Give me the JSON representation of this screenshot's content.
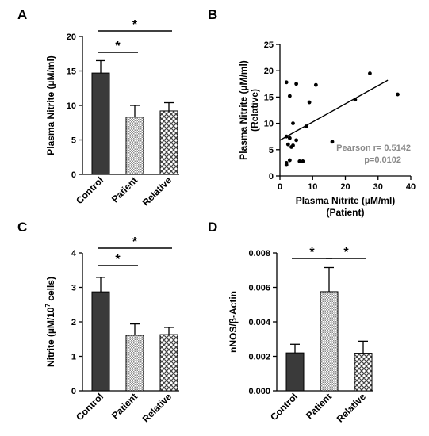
{
  "colors": {
    "control": "#3a3a3a",
    "patient_pattern": "#8c8c8c",
    "relative_pattern": "#444444",
    "stat_text": "#8a8a8a"
  },
  "chart_data": [
    {
      "panel": "A",
      "type": "bar",
      "ylabel": "Plasma Nitrite (µM/ml)",
      "categories": [
        "Control",
        "Patient",
        "Relative"
      ],
      "values": [
        14.7,
        8.3,
        9.2
      ],
      "errors": [
        1.8,
        1.7,
        1.2
      ],
      "ylim": [
        0,
        20
      ],
      "yticks": [
        "0",
        "5",
        "10",
        "15",
        "20"
      ],
      "significance": [
        {
          "from": 0,
          "to": 1,
          "label": "*"
        },
        {
          "from": 0,
          "to": 2,
          "label": "*"
        }
      ]
    },
    {
      "panel": "B",
      "type": "scatter",
      "xlabel": [
        "Plasma Nitrite (µM/ml)",
        "(Patient)"
      ],
      "ylabel": [
        "Plasma Nitrite (µM/ml)",
        "(Relative)"
      ],
      "xlim": [
        0,
        40
      ],
      "ylim": [
        0,
        25
      ],
      "xticks": [
        "0",
        "10",
        "20",
        "30",
        "40"
      ],
      "yticks": [
        "0",
        "5",
        "10",
        "15",
        "20",
        "25"
      ],
      "points": [
        [
          2,
          17.8
        ],
        [
          3,
          15.2
        ],
        [
          5,
          17.5
        ],
        [
          11,
          17.3
        ],
        [
          9,
          14
        ],
        [
          4,
          10
        ],
        [
          8,
          9.4
        ],
        [
          2,
          7.5
        ],
        [
          3,
          7.2
        ],
        [
          5,
          6.8
        ],
        [
          4,
          5.8
        ],
        [
          2.5,
          6
        ],
        [
          3.5,
          5.5
        ],
        [
          6,
          2.8
        ],
        [
          7,
          2.8
        ],
        [
          2,
          2.5
        ],
        [
          2,
          2.1
        ],
        [
          3,
          3
        ],
        [
          16,
          6.5
        ],
        [
          23,
          14.5
        ],
        [
          27.5,
          19.5
        ],
        [
          36,
          15.5
        ]
      ],
      "fit_line": {
        "x": [
          0,
          33
        ],
        "y": [
          6.8,
          18.2
        ]
      },
      "stats": [
        "Pearson r= 0.5142",
        "p=0.0102"
      ]
    },
    {
      "panel": "C",
      "type": "bar",
      "ylabel_main": "Nitrite (µM/10",
      "ylabel_sup": "7",
      "ylabel_tail": " cells)",
      "categories": [
        "Control",
        "Patient",
        "Relative"
      ],
      "values": [
        2.87,
        1.61,
        1.63
      ],
      "errors": [
        0.42,
        0.33,
        0.21
      ],
      "ylim": [
        0,
        4
      ],
      "yticks": [
        "0",
        "1",
        "2",
        "3",
        "4"
      ],
      "significance": [
        {
          "from": 0,
          "to": 1,
          "label": "*"
        },
        {
          "from": 0,
          "to": 2,
          "label": "*"
        }
      ]
    },
    {
      "panel": "D",
      "type": "bar",
      "ylabel": "nNOS/β-Actin",
      "categories": [
        "Control",
        "Patient",
        "Relative"
      ],
      "values": [
        0.0022,
        0.00575,
        0.00218
      ],
      "errors": [
        0.0005,
        0.0014,
        0.0007
      ],
      "ylim": [
        0,
        0.008
      ],
      "yticks": [
        "0.000",
        "0.002",
        "0.004",
        "0.006",
        "0.008"
      ],
      "significance": [
        {
          "from": 0,
          "to": 1,
          "label": "*"
        },
        {
          "from": 1,
          "to": 2,
          "label": "*"
        }
      ]
    }
  ]
}
